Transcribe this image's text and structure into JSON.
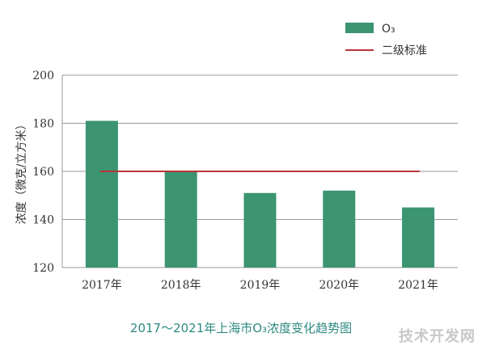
{
  "chart_data": {
    "type": "bar",
    "categories": [
      "2017年",
      "2018年",
      "2019年",
      "2020年",
      "2021年"
    ],
    "series": [
      {
        "name": "O₃",
        "values": [
          181,
          160,
          151,
          152,
          145
        ],
        "color": "#3c9471"
      }
    ],
    "reference_line": {
      "name": "二级标准",
      "value": 160,
      "color": "#b8343b"
    },
    "ylabel": "浓度（微克/立方米）",
    "xlabel": "",
    "ylim": [
      120,
      200
    ],
    "yticks": [
      120,
      140,
      160,
      180,
      200
    ],
    "grid": true,
    "legend_position": "top-right",
    "caption": "2017～2021年上海市O₃浓度变化趋势图"
  },
  "watermark": "技术开发网"
}
